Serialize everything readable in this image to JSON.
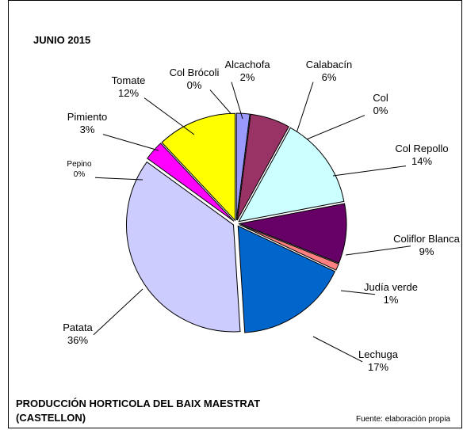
{
  "chart_data": {
    "type": "pie",
    "title": "JUNIO 2015",
    "caption": [
      "PRODUCCIÓN HORTICOLA DEL BAIX MAESTRAT",
      "(CASTELLON)"
    ],
    "source": "Fuente: elaboración propia",
    "categories": [
      "Col Brócoli",
      "Alcachofa",
      "Calabacín",
      "Col",
      "Col Repollo",
      "Coliflor Blanca",
      "Judía verde",
      "Lechuga",
      "Patata",
      "Pepino",
      "Pimiento",
      "Tomate"
    ],
    "values": [
      0,
      2,
      6,
      0,
      14,
      9,
      1,
      17,
      36,
      0,
      3,
      12
    ],
    "value_labels": [
      "0%",
      "2%",
      "6%",
      "0%",
      "14%",
      "9%",
      "1%",
      "17%",
      "36%",
      "0%",
      "3%",
      "12%"
    ],
    "colors": [
      "#00ffff",
      "#9999ff",
      "#993366",
      "#ffffcc",
      "#ccffff",
      "#660066",
      "#ff8080",
      "#0066cc",
      "#ccccff",
      "#000080",
      "#ff00ff",
      "#ffff00"
    ]
  }
}
